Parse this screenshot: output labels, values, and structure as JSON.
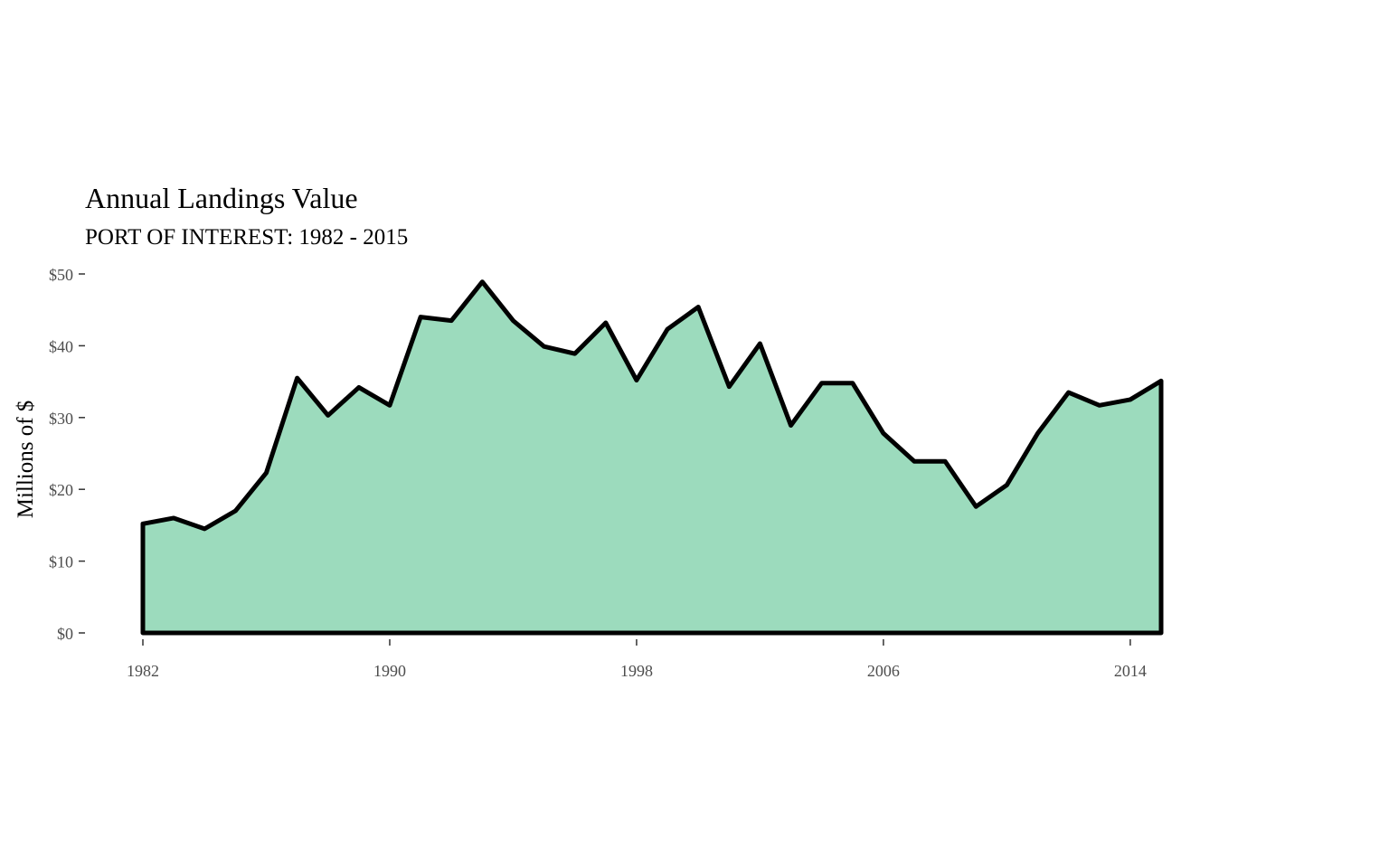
{
  "chart_data": {
    "type": "area",
    "title": "Annual Landings Value",
    "subtitle": "PORT OF INTEREST: 1982 - 2015",
    "xlabel": "",
    "ylabel": "Millions of $",
    "x": [
      1982,
      1983,
      1984,
      1985,
      1986,
      1987,
      1988,
      1989,
      1990,
      1991,
      1992,
      1993,
      1994,
      1995,
      1996,
      1997,
      1998,
      1999,
      2000,
      2001,
      2002,
      2003,
      2004,
      2005,
      2006,
      2007,
      2008,
      2009,
      2010,
      2011,
      2012,
      2013,
      2014,
      2015
    ],
    "series": [
      {
        "values": [
          15.2,
          16.0,
          14.5,
          17.0,
          22.3,
          35.5,
          30.3,
          34.2,
          31.7,
          44.0,
          43.5,
          48.9,
          43.5,
          39.9,
          38.9,
          43.2,
          35.2,
          42.3,
          45.4,
          34.3,
          40.3,
          28.9,
          34.8,
          34.8,
          27.8,
          23.9,
          23.9,
          17.6,
          20.6,
          27.8,
          33.5,
          31.7,
          32.5,
          35.1
        ]
      }
    ],
    "xlim": [
      1982,
      2015
    ],
    "ylim": [
      0,
      50
    ],
    "x_ticks": [
      1982,
      1990,
      1998,
      2006,
      2014
    ],
    "x_tick_labels": [
      "1982",
      "1990",
      "1998",
      "2006",
      "2014"
    ],
    "y_ticks": [
      0,
      10,
      20,
      30,
      40,
      50
    ],
    "y_tick_labels": [
      "$0",
      "$10",
      "$20",
      "$30",
      "$40",
      "$50"
    ],
    "fill_color": "#9cdbbd",
    "line_color": "#000000",
    "background": "#ffffff",
    "grid": false,
    "legend": "none"
  }
}
